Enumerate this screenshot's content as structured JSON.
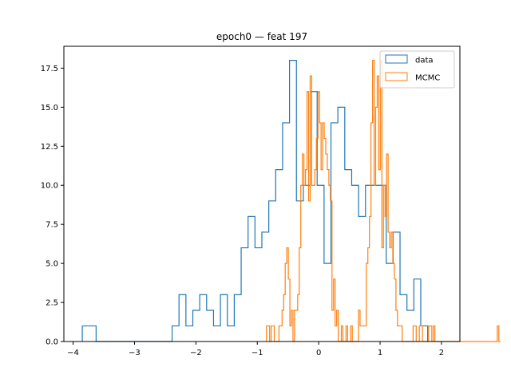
{
  "chart_data": {
    "type": "histogram",
    "title": "epoch0 — feat 197",
    "xlabel": "",
    "ylabel": "",
    "xlim": [
      -4.15,
      2.3
    ],
    "ylim": [
      0,
      18.9
    ],
    "x_ticks": [
      -4,
      -3,
      -2,
      -1,
      0,
      1,
      2
    ],
    "x_tick_labels": [
      "−4",
      "−3",
      "−2",
      "−1",
      "0",
      "1",
      "2"
    ],
    "y_ticks": [
      0,
      2.5,
      5,
      7.5,
      10,
      12.5,
      15,
      17.5
    ],
    "y_tick_labels": [
      "0.0",
      "2.5",
      "5.0",
      "7.5",
      "10.0",
      "12.5",
      "15.0",
      "17.5"
    ],
    "grid": false,
    "legend_position": "top-right",
    "series": [
      {
        "name": "data",
        "color": "#1f77b4",
        "bins_start": -3.85,
        "bin_width": 0.1125,
        "counts": [
          1,
          1,
          0,
          0,
          0,
          0,
          0,
          0,
          0,
          0,
          0,
          0,
          0,
          1,
          3,
          1,
          2,
          3,
          2,
          1,
          3,
          1,
          3,
          6,
          8,
          6,
          7,
          9,
          11,
          14,
          18,
          9,
          10,
          16,
          10,
          5,
          14,
          15,
          11,
          10,
          8,
          10,
          10,
          10,
          5,
          7,
          3,
          2,
          4,
          1
        ]
      },
      {
        "name": "MCMC",
        "color": "#ff7f0e",
        "bins_start": -0.85,
        "bin_width": 0.0254,
        "counts": [
          1,
          1,
          0,
          1,
          1,
          0,
          0,
          0,
          1,
          1,
          2,
          3,
          5,
          6,
          4,
          1,
          2,
          0,
          2,
          2,
          3,
          6,
          10,
          12,
          10,
          11,
          16,
          9,
          17,
          10,
          10,
          11,
          13,
          16,
          14,
          11,
          14,
          13,
          12,
          11,
          10,
          9,
          2,
          4,
          1,
          2,
          0,
          0,
          1,
          0,
          0,
          1,
          0,
          0,
          1,
          0,
          0,
          0,
          0,
          2,
          1,
          1,
          1,
          1,
          5,
          6,
          8,
          14,
          18,
          10,
          15,
          17,
          11,
          18,
          6,
          10,
          8,
          12,
          7,
          6,
          7,
          5,
          4,
          2,
          1,
          1,
          1,
          0,
          0,
          0,
          0,
          0,
          0,
          0,
          1,
          1,
          0,
          0,
          1,
          1,
          0,
          0,
          0,
          0,
          1,
          1,
          0,
          1,
          0,
          0,
          0,
          0,
          0,
          0,
          0,
          0,
          0,
          0,
          0,
          0,
          0,
          0,
          0,
          0,
          0,
          0,
          0,
          0,
          0,
          0,
          0,
          0,
          0,
          0,
          0,
          0,
          0,
          0,
          0,
          0,
          0,
          0,
          0,
          0,
          0,
          0,
          0,
          0,
          1,
          0
        ]
      }
    ]
  }
}
